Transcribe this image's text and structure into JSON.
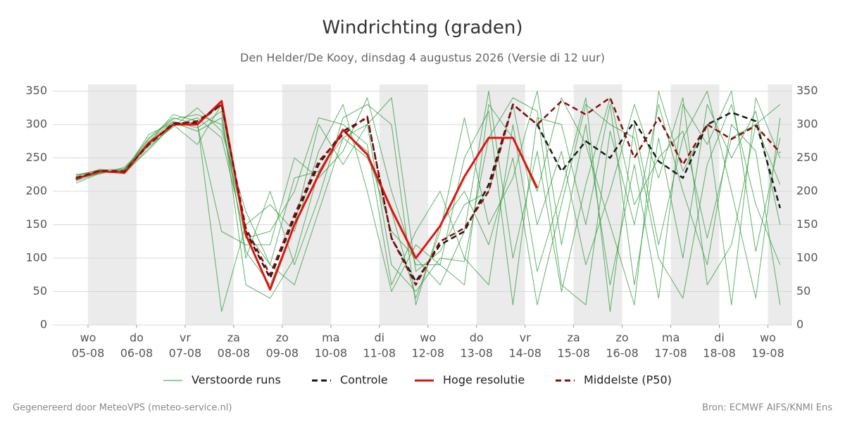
{
  "chart_data": {
    "type": "line",
    "title": "Windrichting (graden)",
    "subtitle": "Den Helder/De Kooy, dinsdag  4 augustus 2026 (Versie di 12 uur)",
    "footer_left": "Gegenereerd door MeteoVPS (meteo-service.nl)",
    "footer_right": "Bron: ECMWF AIFS/KNMI Ens",
    "x": [
      -0.25,
      0.25,
      0.75,
      1.25,
      1.75,
      2.25,
      2.75,
      3.25,
      3.75,
      4.25,
      4.75,
      5.25,
      5.75,
      6.25,
      6.75,
      7.25,
      7.75,
      8.25,
      8.75,
      9.25,
      9.75,
      10.25,
      10.75,
      11.25,
      11.75,
      12.25,
      12.75,
      13.25,
      13.75,
      14.25
    ],
    "xlim": [
      -0.725,
      14.5
    ],
    "xticks": [
      {
        "value": 0,
        "label": "05-08"
      },
      {
        "value": 1,
        "label": "06-08"
      },
      {
        "value": 2,
        "label": "07-08"
      },
      {
        "value": 3,
        "label": "08-08"
      },
      {
        "value": 4,
        "label": "09-08"
      },
      {
        "value": 5,
        "label": "10-08"
      },
      {
        "value": 6,
        "label": "11-08"
      },
      {
        "value": 7,
        "label": "12-08"
      },
      {
        "value": 8,
        "label": "13-08"
      },
      {
        "value": 9,
        "label": "14-08"
      },
      {
        "value": 10,
        "label": "15-08"
      },
      {
        "value": 11,
        "label": "16-08"
      },
      {
        "value": 12,
        "label": "17-08"
      },
      {
        "value": 13,
        "label": "18-08"
      },
      {
        "value": 14,
        "label": "19-08"
      }
    ],
    "xtick_weekdays": [
      "wo",
      "do",
      "vr",
      "za",
      "zo",
      "ma",
      "di",
      "wo",
      "do",
      "vr",
      "za",
      "zo",
      "ma",
      "di",
      "wo"
    ],
    "ylim": [
      0,
      360
    ],
    "yticks": [
      0,
      50,
      100,
      150,
      200,
      250,
      300,
      350
    ],
    "grid": true,
    "ensemble": {
      "name": "Verstoorde runs",
      "color": "#2e9a3c",
      "members": [
        [
          215,
          228,
          232,
          275,
          305,
          295,
          320,
          60,
          40,
          100,
          230,
          280,
          300,
          90,
          50,
          100,
          95,
          280,
          340,
          320,
          60,
          30,
          290,
          150,
          330,
          200,
          90,
          300,
          260,
          30
        ],
        [
          222,
          233,
          226,
          265,
          298,
          310,
          280,
          130,
          140,
          200,
          310,
          300,
          270,
          60,
          140,
          200,
          100,
          60,
          300,
          80,
          200,
          340,
          20,
          300,
          120,
          280,
          350,
          200,
          40,
          310
        ],
        [
          218,
          229,
          231,
          280,
          310,
          300,
          140,
          120,
          120,
          250,
          220,
          260,
          340,
          200,
          90,
          90,
          250,
          320,
          30,
          310,
          300,
          150,
          330,
          60,
          280,
          100,
          330,
          250,
          320,
          150
        ],
        [
          212,
          227,
          234,
          268,
          296,
          325,
          290,
          170,
          90,
          60,
          170,
          280,
          250,
          170,
          40,
          140,
          310,
          150,
          220,
          350,
          120,
          300,
          60,
          240,
          40,
          330,
          270,
          350,
          110,
          280
        ],
        [
          225,
          231,
          229,
          285,
          303,
          290,
          310,
          110,
          60,
          150,
          300,
          240,
          300,
          340,
          80,
          110,
          180,
          200,
          330,
          150,
          260,
          90,
          200,
          330,
          220,
          340,
          60,
          120,
          300,
          210
        ],
        [
          220,
          226,
          236,
          272,
          315,
          305,
          20,
          150,
          180,
          140,
          260,
          330,
          200,
          50,
          120,
          90,
          60,
          330,
          280,
          200,
          340,
          270,
          150,
          30,
          350,
          230,
          300,
          30,
          340,
          250
        ],
        [
          217,
          230,
          228,
          262,
          300,
          270,
          330,
          100,
          200,
          90,
          190,
          310,
          330,
          300,
          30,
          150,
          200,
          120,
          250,
          30,
          180,
          330,
          300,
          280,
          100,
          40,
          240,
          330,
          180,
          90
        ],
        [
          224,
          232,
          233,
          278,
          308,
          315,
          300,
          140,
          90,
          220,
          230,
          290,
          260,
          140,
          100,
          60,
          140,
          350,
          100,
          260,
          50,
          210,
          340,
          180,
          250,
          290,
          130,
          280,
          300,
          330
        ]
      ]
    },
    "series": [
      {
        "name": "Controle",
        "color": "#1a1a1a",
        "dash": true,
        "values": [
          218,
          230,
          229,
          270,
          302,
          302,
          330,
          140,
          70,
          160,
          240,
          290,
          310,
          130,
          65,
          120,
          140,
          210,
          330,
          300,
          230,
          275,
          250,
          305,
          245,
          220,
          300,
          318,
          305,
          175
        ]
      },
      {
        "name": "Hoge resolutie",
        "color": "#e0140f",
        "dash": false,
        "values": [
          219,
          230,
          228,
          272,
          300,
          300,
          335,
          135,
          53,
          150,
          225,
          292,
          255,
          173,
          100,
          148,
          222,
          280,
          280,
          205,
          null,
          null,
          null,
          null,
          null,
          null,
          null,
          null,
          null,
          null
        ]
      },
      {
        "name": "Middelste (P50)",
        "color": "#8b0d0d",
        "dash": true,
        "values": [
          220,
          231,
          230,
          270,
          300,
          305,
          330,
          145,
          75,
          165,
          245,
          285,
          312,
          130,
          60,
          125,
          145,
          200,
          330,
          300,
          335,
          315,
          340,
          250,
          310,
          240,
          300,
          278,
          298,
          258
        ]
      }
    ]
  }
}
